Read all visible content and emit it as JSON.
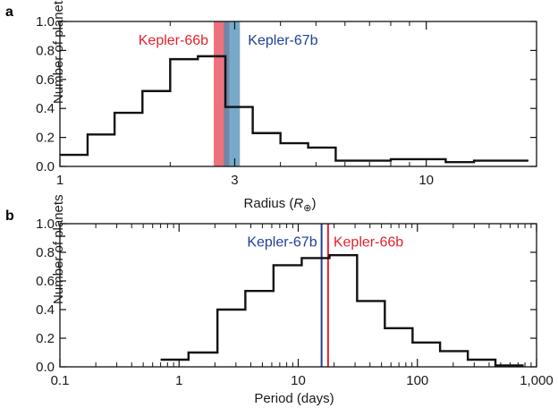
{
  "chart_data": [
    {
      "panel": "a",
      "type": "histogram-step",
      "xlabel_text": "Radius (",
      "xlabel_symbol": "R",
      "xlabel_subscript": "⊕",
      "xlabel_close": ")",
      "ylabel": "Number of planets",
      "xscale": "log",
      "xlim": [
        1,
        20
      ],
      "ylim": [
        0,
        1.0
      ],
      "xticks": [
        {
          "v": 1,
          "label": "1"
        },
        {
          "v": 3,
          "label": "3"
        },
        {
          "v": 10,
          "label": "10"
        }
      ],
      "yticks": [
        {
          "v": 0.0,
          "label": "0.0"
        },
        {
          "v": 0.2,
          "label": "0.2"
        },
        {
          "v": 0.4,
          "label": "0.4"
        },
        {
          "v": 0.6,
          "label": "0.6"
        },
        {
          "v": 0.8,
          "label": "0.8"
        },
        {
          "v": 1.0,
          "label": "1.0"
        }
      ],
      "minor_xticks": [
        2,
        4,
        5,
        6,
        7,
        8,
        9
      ],
      "edges": [
        1.0,
        1.19,
        1.41,
        1.68,
        2.0,
        2.38,
        2.83,
        3.36,
        4.0,
        4.76,
        5.66,
        6.73,
        8.0,
        9.51,
        11.3,
        13.5,
        16.0,
        19.0
      ],
      "values": [
        0.08,
        0.22,
        0.37,
        0.52,
        0.74,
        0.76,
        0.41,
        0.23,
        0.16,
        0.13,
        0.04,
        0.04,
        0.05,
        0.05,
        0.03,
        0.04,
        0.04
      ],
      "bands": [
        {
          "name": "Kepler-66b",
          "x0": 2.63,
          "x1": 2.9,
          "color": "#e8434f",
          "opacity": 0.75
        },
        {
          "name": "Kepler-67b",
          "x0": 2.8,
          "x1": 3.1,
          "color": "#4a8db5",
          "opacity": 0.75
        }
      ],
      "annotations": [
        {
          "text": "Kepler-66b",
          "color": "#e3232c",
          "align": "right-of-band-left",
          "y": 0.84
        },
        {
          "text": "Kepler-67b",
          "color": "#1f3f99",
          "align": "left-of-band-right",
          "y": 0.84
        }
      ],
      "grid": false
    },
    {
      "panel": "b",
      "type": "histogram-step",
      "xlabel": "Period (days)",
      "ylabel": "Number of planets",
      "xscale": "log",
      "xlim": [
        0.1,
        1000
      ],
      "ylim": [
        0,
        1.0
      ],
      "xticks": [
        {
          "v": 0.1,
          "label": "0.1"
        },
        {
          "v": 1,
          "label": "1"
        },
        {
          "v": 10,
          "label": "10"
        },
        {
          "v": 100,
          "label": "100"
        },
        {
          "v": 1000,
          "label": "1,000"
        }
      ],
      "yticks": [
        {
          "v": 0.0,
          "label": "0.0"
        },
        {
          "v": 0.2,
          "label": "0.2"
        },
        {
          "v": 0.4,
          "label": "0.4"
        },
        {
          "v": 0.6,
          "label": "0.6"
        },
        {
          "v": 0.8,
          "label": "0.8"
        },
        {
          "v": 1.0,
          "label": "1.0"
        }
      ],
      "edges": [
        0.7,
        1.2,
        2.1,
        3.6,
        6.2,
        10.7,
        18.3,
        31.2,
        53.3,
        91.1,
        155,
        265,
        452,
        780
      ],
      "values": [
        0.05,
        0.1,
        0.4,
        0.53,
        0.71,
        0.76,
        0.78,
        0.46,
        0.27,
        0.17,
        0.11,
        0.05,
        0.01
      ],
      "lines": [
        {
          "name": "Kepler-67b",
          "x": 15.7,
          "color": "#1f3f99"
        },
        {
          "name": "Kepler-66b",
          "x": 17.8,
          "color": "#e3232c"
        }
      ],
      "annotations": [
        {
          "text": "Kepler-67b",
          "color": "#1f3f99",
          "align": "left-of-line",
          "y": 0.84
        },
        {
          "text": "Kepler-66b",
          "color": "#e3232c",
          "align": "right-of-line",
          "y": 0.84
        }
      ],
      "grid": false
    }
  ]
}
